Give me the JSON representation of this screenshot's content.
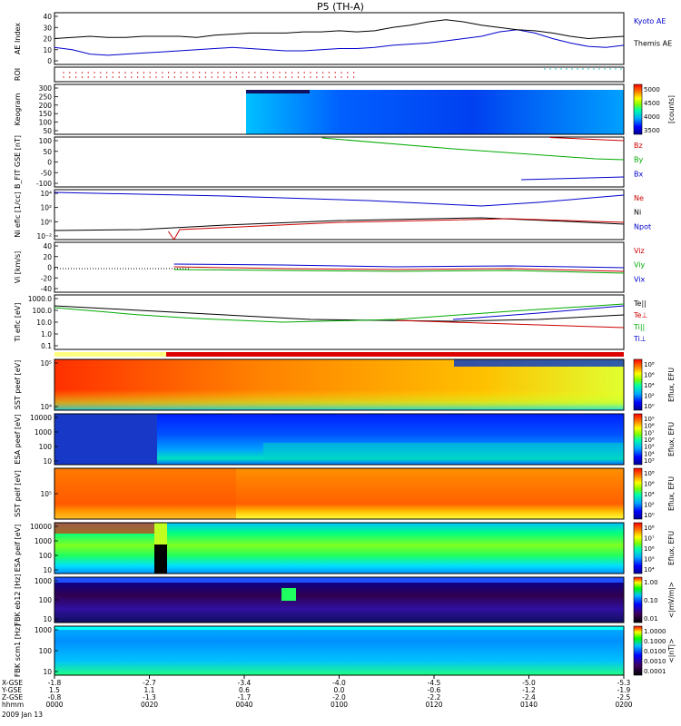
{
  "title": "P5 (TH-A)",
  "chart_data": {
    "type": "line",
    "title": "P5 (TH-A)",
    "date": "2009 Jan 13",
    "x_axis": {
      "rows": [
        "X-GSE",
        "Y-GSE",
        "Z-GSE",
        "hhmm"
      ],
      "ticks": [
        {
          "x": "-1.8",
          "y": "1.5",
          "z": "-0.8",
          "t": "0000"
        },
        {
          "x": "-2.7",
          "y": "1.1",
          "z": "-1.3",
          "t": "0020"
        },
        {
          "x": "-3.4",
          "y": "0.6",
          "z": "-1.7",
          "t": "0040"
        },
        {
          "x": "-4.0",
          "y": "0.0",
          "z": "-2.0",
          "t": "0100"
        },
        {
          "x": "-4.5",
          "y": "-0.6",
          "z": "-2.2",
          "t": "0120"
        },
        {
          "x": "-5.0",
          "y": "-1.2",
          "z": "-2.4",
          "t": "0140"
        },
        {
          "x": "-5.3",
          "y": "-1.9",
          "z": "-2.5",
          "t": "0200"
        }
      ]
    },
    "panels": [
      {
        "id": "ae",
        "ylabel": "AE Index",
        "yticks": [
          "40",
          "30",
          "20",
          "10",
          "0"
        ],
        "legend": [
          {
            "text": "Kyoto AE",
            "color": "#0000cc"
          },
          {
            "text": "Themis AE",
            "color": "#000000"
          }
        ],
        "series": [
          {
            "name": "Kyoto AE",
            "color": "#0000cc",
            "values": [
              12,
              10,
              6,
              5,
              6,
              7,
              8,
              9,
              10,
              11,
              12,
              11,
              10,
              9,
              9,
              10,
              11,
              11,
              12,
              14,
              15,
              16,
              18,
              20,
              22,
              26,
              28,
              25,
              20,
              16,
              13,
              12,
              14
            ]
          },
          {
            "name": "Themis AE",
            "color": "#000000",
            "values": [
              20,
              21,
              22,
              21,
              21,
              22,
              22,
              22,
              21,
              23,
              24,
              25,
              25,
              25,
              26,
              26,
              27,
              26,
              27,
              30,
              32,
              35,
              37,
              35,
              32,
              30,
              28,
              27,
              25,
              22,
              20,
              21,
              22
            ]
          }
        ]
      },
      {
        "id": "roi",
        "ylabel": "ROI"
      },
      {
        "id": "keogram",
        "ylabel": "Keogram",
        "yticks": [
          "300",
          "250",
          "200",
          "150",
          "100",
          "50"
        ],
        "cbar_ticks": [
          "5000",
          "4500",
          "4000",
          "3500"
        ],
        "cbar_label": "[counts]"
      },
      {
        "id": "bfit",
        "ylabel": "B_FIT GSE [nT]",
        "yticks": [
          "100",
          "50",
          "0",
          "-50",
          "-100"
        ],
        "legend": [
          {
            "text": "Bz",
            "color": "#cc0000"
          },
          {
            "text": "By",
            "color": "#00aa00"
          },
          {
            "text": "Bx",
            "color": "#0000cc"
          }
        ]
      },
      {
        "id": "ni",
        "ylabel": "Ni eflc [1/cc]",
        "yticks": [
          "10⁴",
          "10²",
          "10⁰",
          "10⁻²"
        ],
        "legend": [
          {
            "text": "Ne",
            "color": "#cc0000"
          },
          {
            "text": "Ni",
            "color": "#000000"
          },
          {
            "text": "Npot",
            "color": "#0000cc"
          }
        ]
      },
      {
        "id": "vi",
        "ylabel": "Vi [km/s]",
        "yticks": [
          "40",
          "20",
          "0",
          "-20",
          "-40"
        ],
        "legend": [
          {
            "text": "Viz",
            "color": "#cc0000"
          },
          {
            "text": "Viy",
            "color": "#00aa00"
          },
          {
            "text": "Vix",
            "color": "#0000cc"
          }
        ]
      },
      {
        "id": "ti",
        "ylabel": "Ti eflc [eV]",
        "yticks": [
          "1000.0",
          "100.0",
          "10.0",
          "1.0",
          "0.1"
        ],
        "legend": [
          {
            "text": "Te||",
            "color": "#000000"
          },
          {
            "text": "Te⊥",
            "color": "#cc0000"
          },
          {
            "text": "Ti||",
            "color": "#00aa00"
          },
          {
            "text": "Ti⊥",
            "color": "#0000cc"
          }
        ]
      },
      {
        "id": "sst_e",
        "ylabel": "SST peef [eV]",
        "yticks": [
          "10⁵",
          "10⁴"
        ],
        "cbar_ticks": [
          "10⁸",
          "10⁶",
          "10⁴",
          "10²",
          "10⁰"
        ],
        "cbar_label": "Eflux, EFU"
      },
      {
        "id": "esa_e",
        "ylabel": "ESA peef [eV]",
        "yticks": [
          "10000",
          "1000",
          "100",
          "10"
        ],
        "cbar_ticks": [
          "10⁹",
          "10⁸",
          "10⁷",
          "10⁶",
          "10⁵",
          "10⁴",
          "10³"
        ],
        "cbar_label": "Eflux, EFU"
      },
      {
        "id": "sst_i",
        "ylabel": "SST peif [eV]",
        "yticks": [
          "10⁵"
        ],
        "cbar_ticks": [
          "10⁸",
          "10⁶",
          "10⁴",
          "10²",
          "10⁰"
        ],
        "cbar_label": "Eflux, EFU"
      },
      {
        "id": "esa_i",
        "ylabel": "ESA peif [eV]",
        "yticks": [
          "10000",
          "1000",
          "100",
          "10"
        ],
        "cbar_ticks": [
          "10⁸",
          "10⁷",
          "10⁶",
          "10⁵",
          "10⁴"
        ],
        "cbar_label": "Eflux, EFU"
      },
      {
        "id": "fbk1",
        "ylabel": "FBK eb12 [Hz]",
        "yticks": [
          "1000",
          "100",
          "10"
        ],
        "cbar_ticks": [
          "1.00",
          "0.10",
          "0.01"
        ],
        "cbar_label": "<|mV/m|>"
      },
      {
        "id": "fbk2",
        "ylabel": "FBK scm1 [Hz]",
        "yticks": [
          "1000",
          "100",
          "10"
        ],
        "cbar_ticks": [
          "1.0000",
          "0.1000",
          "0.0100",
          "0.0010",
          "0.0001"
        ],
        "cbar_label": "<|nT|>"
      }
    ]
  }
}
